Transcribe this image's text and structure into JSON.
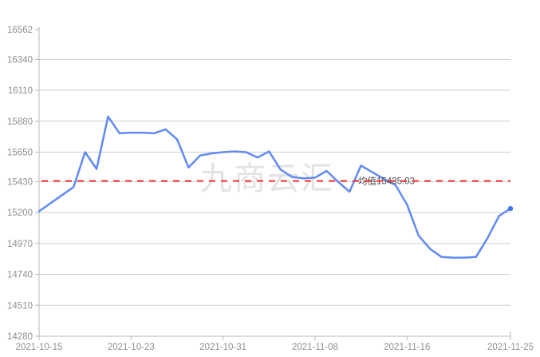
{
  "chart_data": {
    "type": "line",
    "title": "",
    "xlabel": "",
    "ylabel": "",
    "x": [
      "2021-10-15",
      "2021-10-16",
      "2021-10-17",
      "2021-10-18",
      "2021-10-19",
      "2021-10-20",
      "2021-10-21",
      "2021-10-22",
      "2021-10-23",
      "2021-10-24",
      "2021-10-25",
      "2021-10-26",
      "2021-10-27",
      "2021-10-28",
      "2021-10-29",
      "2021-10-30",
      "2021-10-31",
      "2021-11-01",
      "2021-11-02",
      "2021-11-03",
      "2021-11-04",
      "2021-11-05",
      "2021-11-06",
      "2021-11-07",
      "2021-11-08",
      "2021-11-09",
      "2021-11-10",
      "2021-11-11",
      "2021-11-12",
      "2021-11-13",
      "2021-11-14",
      "2021-11-15",
      "2021-11-16",
      "2021-11-17",
      "2021-11-18",
      "2021-11-19",
      "2021-11-20",
      "2021-11-21",
      "2021-11-22",
      "2021-11-23",
      "2021-11-24",
      "2021-11-25"
    ],
    "values": [
      15210,
      15270,
      15330,
      15390,
      15650,
      15525,
      15915,
      15790,
      15795,
      15795,
      15790,
      15820,
      15745,
      15535,
      15625,
      15640,
      15650,
      15655,
      15650,
      15610,
      15655,
      15520,
      15465,
      15455,
      15460,
      15510,
      15430,
      15355,
      15550,
      15500,
      15450,
      15405,
      15260,
      15030,
      14930,
      14870,
      14865,
      14865,
      14870,
      15010,
      15175,
      15230
    ],
    "x_tick_labels": [
      "2021-10-15",
      "2021-10-23",
      "2021-10-31",
      "2021-11-08",
      "2021-11-16",
      "2021-11-25"
    ],
    "x_tick_indices": [
      0,
      8,
      16,
      24,
      32,
      41
    ],
    "y_ticks": [
      14280,
      14510,
      14740,
      14970,
      15200,
      15430,
      15650,
      15880,
      16110,
      16340,
      16562
    ],
    "ylim": [
      14280,
      16562
    ],
    "grid": true,
    "legend_position": "none",
    "average_line": {
      "value": 15435.03,
      "label": "均值15435.03"
    },
    "watermark": {
      "text": "九商云汇"
    },
    "colors": {
      "line": "#618af2",
      "line_end_dot": "#4478ee",
      "average_line": "#ff2d2d",
      "average_label_text": "#4d4d4d",
      "grid": "#cfcfcf",
      "axis": "#b8b8b8",
      "tick_text": "#8f8f8f",
      "watermark_text": "#e3e3e3",
      "watermark_bg": "#ffffff",
      "background": "#ffffff"
    }
  }
}
